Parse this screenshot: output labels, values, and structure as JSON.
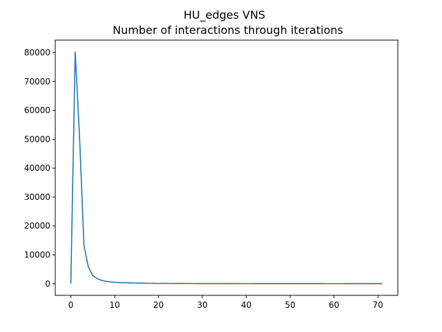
{
  "chart_data": {
    "type": "line",
    "title": "HU_edges VNS",
    "subtitle": "Number of interactions through iterations",
    "xlabel": "",
    "ylabel": "",
    "xlim": [
      -3.55,
      74.55
    ],
    "ylim": [
      -4000,
      84300
    ],
    "xticks": [
      0,
      10,
      20,
      30,
      40,
      50,
      60,
      70
    ],
    "yticks": [
      0,
      10000,
      20000,
      30000,
      40000,
      50000,
      60000,
      70000,
      80000
    ],
    "grid": false,
    "line_color": "#1f77b4",
    "series": [
      {
        "name": "interactions",
        "x": [
          0,
          1,
          2,
          3,
          4,
          5,
          6,
          7,
          8,
          9,
          10,
          11,
          12,
          13,
          14,
          15,
          16,
          17,
          18,
          19,
          20,
          21,
          22,
          23,
          24,
          25,
          26,
          27,
          28,
          29,
          30,
          31,
          32,
          33,
          34,
          35,
          36,
          37,
          38,
          39,
          40,
          41,
          42,
          43,
          44,
          45,
          46,
          47,
          48,
          49,
          50,
          51,
          52,
          53,
          54,
          55,
          56,
          57,
          58,
          59,
          60,
          61,
          62,
          63,
          64,
          65,
          66,
          67,
          68,
          69,
          70,
          71
        ],
        "values": [
          0,
          80200,
          50500,
          13200,
          5800,
          2900,
          1800,
          1200,
          850,
          650,
          500,
          420,
          360,
          320,
          280,
          250,
          230,
          210,
          190,
          170,
          160,
          150,
          140,
          130,
          120,
          115,
          110,
          105,
          100,
          95,
          90,
          88,
          85,
          82,
          80,
          78,
          76,
          74,
          72,
          70,
          68,
          66,
          64,
          62,
          60,
          58,
          56,
          54,
          52,
          50,
          48,
          47,
          46,
          45,
          44,
          43,
          42,
          41,
          40,
          39,
          38,
          37,
          36,
          35,
          34,
          33,
          32,
          31,
          30,
          29,
          28,
          27
        ]
      }
    ]
  }
}
